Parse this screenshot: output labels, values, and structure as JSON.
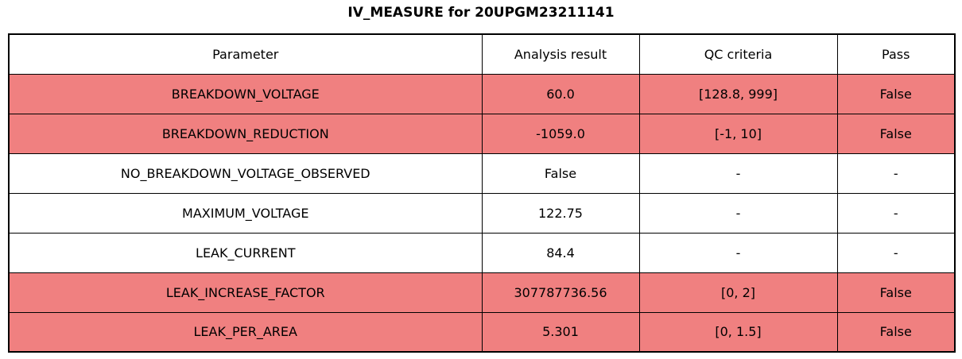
{
  "title": "IV_MEASURE for 20UPGM23211141",
  "colors": {
    "fail_row_background": "#f08080",
    "normal_row_background": "#ffffff",
    "border": "#000000",
    "text": "#000000"
  },
  "table": {
    "headers": {
      "parameter": "Parameter",
      "result": "Analysis result",
      "qc": "QC criteria",
      "pass": "Pass"
    },
    "rows": [
      {
        "parameter": "BREAKDOWN_VOLTAGE",
        "result": "60.0",
        "qc": "[128.8, 999]",
        "pass": "False",
        "highlight": true
      },
      {
        "parameter": "BREAKDOWN_REDUCTION",
        "result": "-1059.0",
        "qc": "[-1, 10]",
        "pass": "False",
        "highlight": true
      },
      {
        "parameter": "NO_BREAKDOWN_VOLTAGE_OBSERVED",
        "result": "False",
        "qc": "-",
        "pass": "-",
        "highlight": false
      },
      {
        "parameter": "MAXIMUM_VOLTAGE",
        "result": "122.75",
        "qc": "-",
        "pass": "-",
        "highlight": false
      },
      {
        "parameter": "LEAK_CURRENT",
        "result": "84.4",
        "qc": "-",
        "pass": "-",
        "highlight": false
      },
      {
        "parameter": "LEAK_INCREASE_FACTOR",
        "result": "307787736.56",
        "qc": "[0, 2]",
        "pass": "False",
        "highlight": true
      },
      {
        "parameter": "LEAK_PER_AREA",
        "result": "5.301",
        "qc": "[0, 1.5]",
        "pass": "False",
        "highlight": true
      }
    ]
  }
}
